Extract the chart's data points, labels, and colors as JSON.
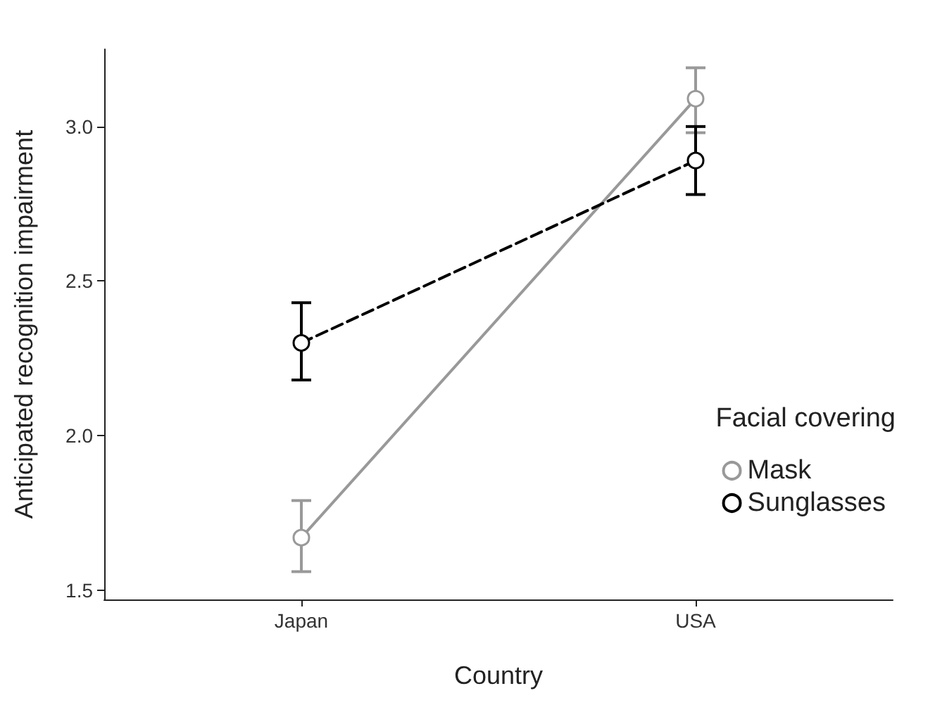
{
  "chart_data": {
    "type": "line",
    "xlabel": "Country",
    "ylabel": "Anticipated recognition impairment",
    "legend_title": "Facial covering",
    "categories": [
      "Japan",
      "USA"
    ],
    "series": [
      {
        "name": "Mask",
        "color": "#999999",
        "values": [
          1.67,
          3.09
        ],
        "errors": [
          [
            1.56,
            1.79
          ],
          [
            2.98,
            3.19
          ]
        ],
        "line_style": "solid"
      },
      {
        "name": "Sunglasses",
        "color": "#000000",
        "values": [
          2.3,
          2.89
        ],
        "errors": [
          [
            2.18,
            2.43
          ],
          [
            2.78,
            3.0
          ]
        ],
        "line_style": "dashed"
      }
    ],
    "ylim": [
      1.47,
      3.25
    ],
    "yticks": [
      {
        "value": 1.5,
        "label": "1.5"
      },
      {
        "value": 2.0,
        "label": "2.0"
      },
      {
        "value": 2.5,
        "label": "2.5"
      },
      {
        "value": 3.0,
        "label": "3.0"
      }
    ],
    "grid": false,
    "legend": "right",
    "marker": "circle"
  }
}
